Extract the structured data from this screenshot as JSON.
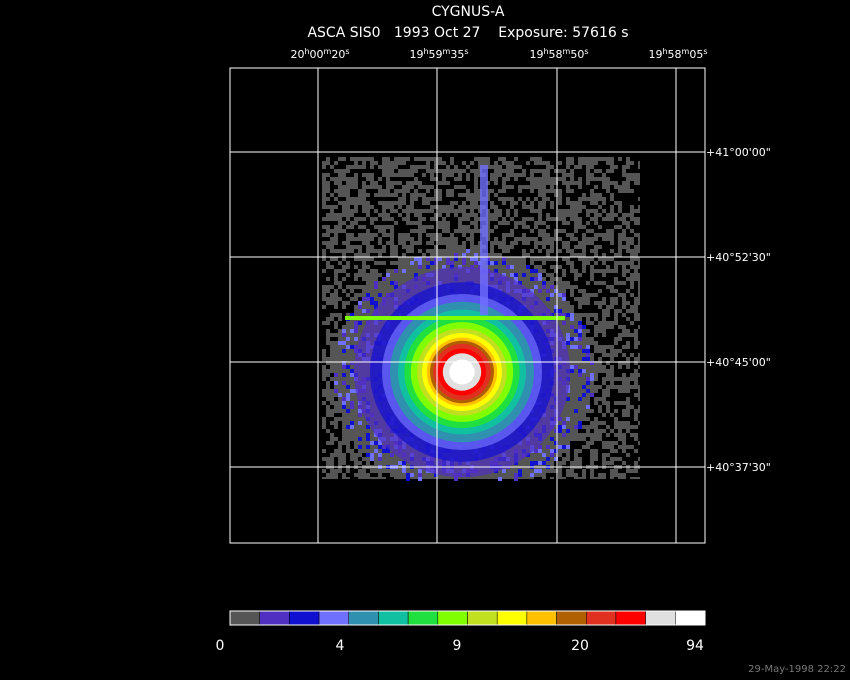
{
  "header": {
    "title": "CYGNUS-A",
    "subtitle": "ASCA SIS0   1993 Oct 27    Exposure: 57616 s"
  },
  "ra_labels": [
    "20h00m20s",
    "19h59m35s",
    "19h58m50s",
    "19h58m05s"
  ],
  "dec_labels": [
    "+41°00'00\"",
    "+40°52'30\"",
    "+40°45'00\"",
    "+40°37'30\""
  ],
  "colorbar": {
    "colors": [
      "#555555",
      "#5030c0",
      "#1010d0",
      "#7070ff",
      "#3090b0",
      "#10c0a0",
      "#20e040",
      "#80ff00",
      "#c0e020",
      "#ffff00",
      "#ffc000",
      "#b06000",
      "#e03020",
      "#ff0000",
      "#e0e0e0",
      "#ffffff"
    ],
    "labels": [
      "0",
      "4",
      "9",
      "20",
      "94"
    ]
  },
  "timestamp": "29-May-1998 22:22"
}
